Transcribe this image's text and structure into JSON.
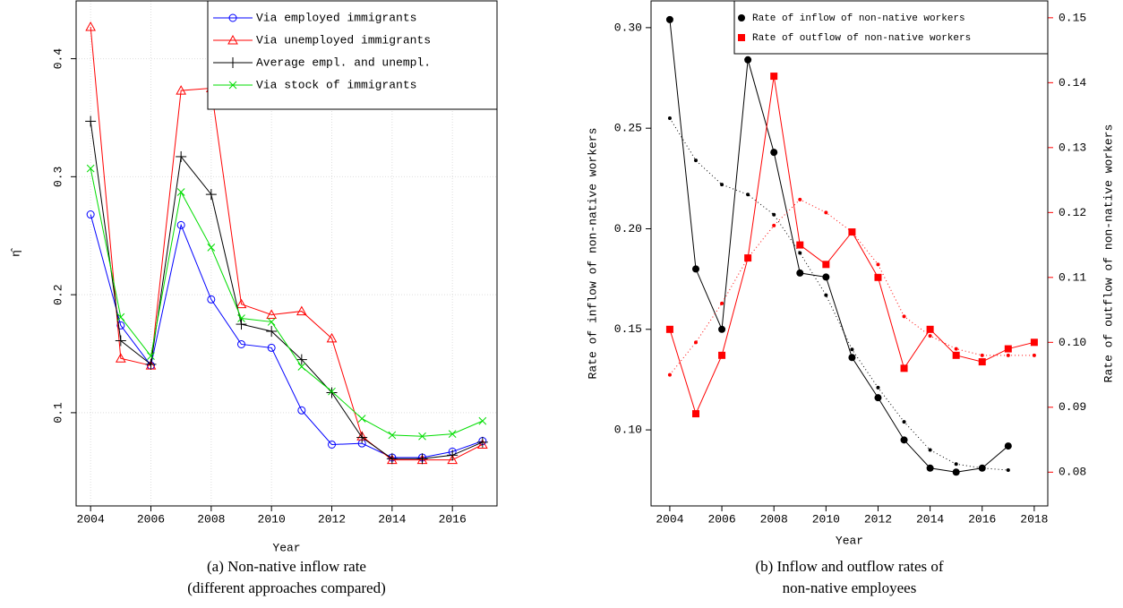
{
  "chart_data": [
    {
      "type": "line",
      "caption": [
        "(a) Non-native inflow rate",
        "(different approaches compared)"
      ],
      "xlabel": "Year",
      "ylabel": "η̂",
      "x": [
        2004,
        2005,
        2006,
        2007,
        2008,
        2009,
        2010,
        2011,
        2012,
        2013,
        2014,
        2015,
        2016,
        2017
      ],
      "xlim": [
        2003.52,
        2017.48
      ],
      "xticks": [
        2004,
        2006,
        2008,
        2010,
        2012,
        2014,
        2016
      ],
      "ylim": [
        0.021,
        0.449
      ],
      "yticks": [
        0.1,
        0.2,
        0.3,
        0.4
      ],
      "grid": true,
      "legend": "top-right",
      "series": [
        {
          "name": "Via employed immigrants",
          "color": "#0000ff",
          "marker": "circle-open",
          "linestyle": "solid",
          "values": [
            0.268,
            0.174,
            0.14,
            0.259,
            0.196,
            0.158,
            0.155,
            0.102,
            0.073,
            0.074,
            0.062,
            0.062,
            0.067,
            0.076
          ]
        },
        {
          "name": "Via unemployed immigrants",
          "color": "#ff0000",
          "marker": "triangle-open",
          "linestyle": "solid",
          "values": [
            0.427,
            0.146,
            0.14,
            0.373,
            0.375,
            0.192,
            0.183,
            0.186,
            0.163,
            0.08,
            0.06,
            0.06,
            0.06,
            0.073
          ]
        },
        {
          "name": "Average empl. and unempl.",
          "color": "#000000",
          "marker": "plus",
          "linestyle": "solid",
          "values": [
            0.347,
            0.161,
            0.141,
            0.317,
            0.285,
            0.175,
            0.169,
            0.145,
            0.117,
            0.079,
            0.061,
            0.061,
            0.064,
            0.075
          ]
        },
        {
          "name": "Via stock of immigrants",
          "color": "#00dd00",
          "marker": "cross",
          "linestyle": "solid",
          "values": [
            0.307,
            0.181,
            0.148,
            0.287,
            0.24,
            0.18,
            0.177,
            0.139,
            0.118,
            0.095,
            0.081,
            0.08,
            0.082,
            0.093
          ]
        }
      ]
    },
    {
      "type": "line",
      "caption": [
        "(b) Inflow and outflow rates of",
        "non-native employees"
      ],
      "xlabel": "Year",
      "ylabel": "Rate of inflow of non-native workers",
      "y2label": "Rate of outflow of non-native workers",
      "y2color": "#ff0000",
      "x": [
        2004,
        2005,
        2006,
        2007,
        2008,
        2009,
        2010,
        2011,
        2012,
        2013,
        2014,
        2015,
        2016,
        2017,
        2018
      ],
      "xlim": [
        2003.28,
        2018.52
      ],
      "xticks": [
        2004,
        2006,
        2008,
        2010,
        2012,
        2014,
        2016,
        2018
      ],
      "ylim": [
        0.0622,
        0.3133
      ],
      "yticks": [
        {
          "value": 0.1,
          "label": "0.10"
        },
        0.15,
        {
          "value": 0.2,
          "label": "0.20"
        },
        0.25,
        {
          "value": 0.3,
          "label": "0.30"
        }
      ],
      "y2lim": [
        0.0748,
        0.1526
      ],
      "y2ticks": [
        0.08,
        0.09,
        {
          "value": 0.1,
          "label": "0.10"
        },
        0.11,
        0.12,
        0.13,
        0.14,
        0.15
      ],
      "grid": false,
      "legend": "top-right",
      "series": [
        {
          "name": "Rate of inflow of non-native workers",
          "color": "#000000",
          "marker": "dot",
          "linestyle": "solid",
          "values": [
            0.304,
            0.18,
            0.15,
            0.284,
            0.238,
            0.178,
            0.176,
            0.136,
            0.116,
            0.095,
            0.081,
            0.079,
            0.081,
            0.092,
            null
          ]
        },
        {
          "color": "#000000",
          "marker": "dot-small",
          "linestyle": "dotted",
          "values": [
            0.255,
            0.234,
            0.222,
            0.217,
            0.207,
            0.188,
            0.167,
            0.14,
            0.121,
            0.104,
            0.09,
            0.083,
            0.081,
            0.08,
            null
          ]
        },
        {
          "name": "Rate of outflow of non-native workers",
          "color": "#ff0000",
          "marker": "square",
          "linestyle": "solid",
          "axis": "y2",
          "values": [
            0.102,
            0.089,
            0.098,
            0.113,
            0.141,
            0.115,
            0.112,
            0.117,
            0.11,
            0.096,
            0.102,
            0.098,
            0.097,
            0.099,
            0.1
          ]
        },
        {
          "color": "#ff0000",
          "marker": "dot-small",
          "linestyle": "dotted",
          "axis": "y2",
          "values": [
            0.095,
            0.1,
            0.106,
            0.113,
            0.118,
            0.122,
            0.12,
            0.117,
            0.112,
            0.104,
            0.101,
            0.099,
            0.098,
            0.098,
            0.098
          ]
        }
      ]
    }
  ]
}
